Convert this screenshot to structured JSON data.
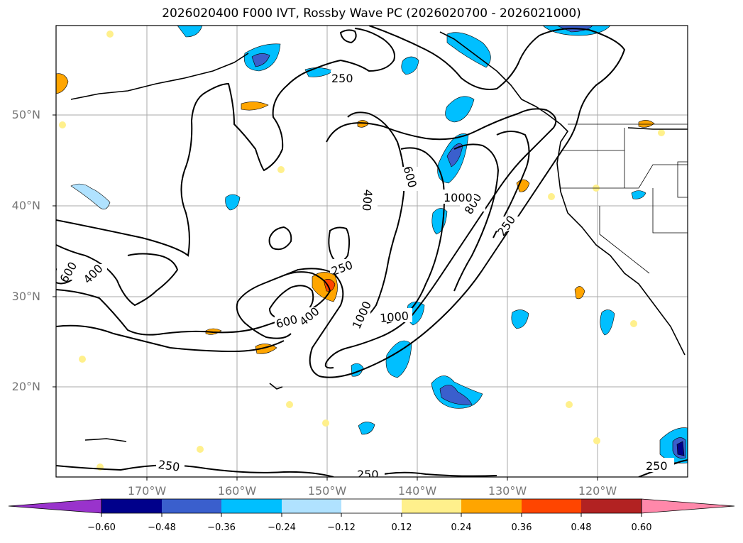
{
  "title": "2026020400 F000 IVT, Rossby Wave PC (2026020700 - 2026021000)",
  "map": {
    "lat_labels": [
      "50°N",
      "40°N",
      "30°N",
      "20°N"
    ],
    "lon_labels": [
      "170°W",
      "160°W",
      "150°W",
      "140°W",
      "130°W",
      "120°W"
    ],
    "contour_labels": [
      "250",
      "250",
      "250",
      "250",
      "250",
      "250",
      "400",
      "400",
      "400",
      "600",
      "600",
      "600",
      "800",
      "1000",
      "1000",
      "1000"
    ],
    "region": "North Pacific / western North America"
  },
  "colorbar": {
    "ticks": [
      "−0.60",
      "−0.48",
      "−0.36",
      "−0.24",
      "−0.12",
      "0.12",
      "0.24",
      "0.36",
      "0.48",
      "0.60"
    ],
    "colors": [
      "#9933cc",
      "#00008b",
      "#3a5fcd",
      "#00bfff",
      "#b0e2ff",
      "#ffffff",
      "#fff08c",
      "#ffa500",
      "#ff4500",
      "#b22222",
      "#ff88aa"
    ]
  }
}
